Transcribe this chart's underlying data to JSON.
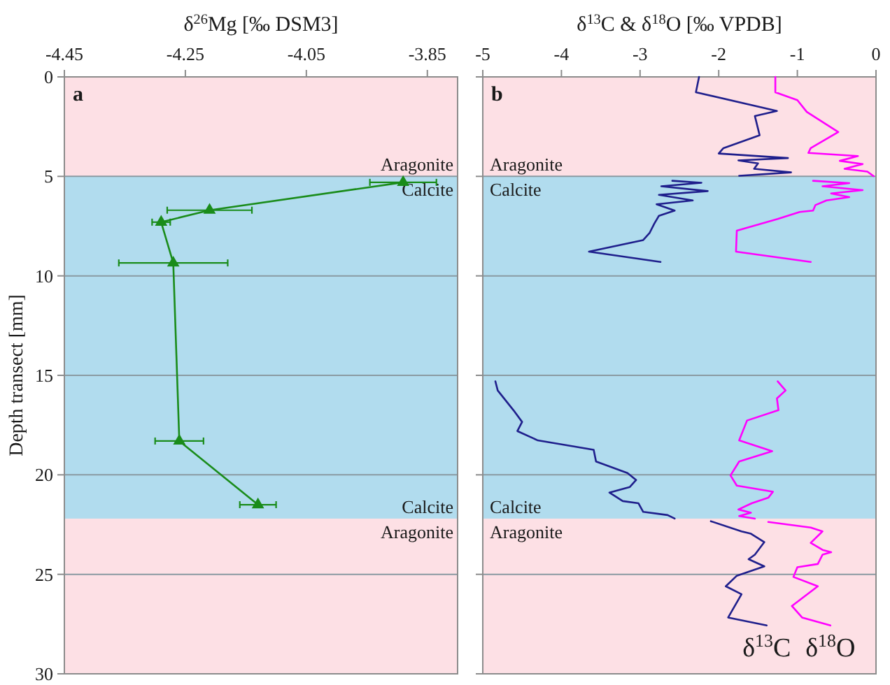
{
  "chart_data": [
    {
      "type": "line",
      "xlabel": "δ$^{26}$Mg [‰ DSM3]",
      "ylabel": "Depth transect [mm]",
      "x": [
        -3.89,
        -4.21,
        -4.29,
        -4.27,
        -4.26,
        -4.13
      ],
      "values": [
        5.3,
        6.7,
        7.3,
        9.35,
        18.3,
        21.5
      ],
      "xerrors": [
        0.055,
        0.07,
        0.015,
        0.09,
        0.04,
        0.03
      ],
      "color": "#1a8c1a",
      "marker": "triangle",
      "xlim": [
        -4.45,
        -3.8
      ],
      "xticks": [
        -4.45,
        -4.25,
        -4.05,
        -3.85
      ],
      "ylim": [
        30,
        0
      ],
      "yticks": [
        0,
        5,
        10,
        15,
        20,
        25,
        30
      ],
      "grid": "y",
      "bands": [
        {
          "axis": "y",
          "from": 0,
          "to": 5,
          "label": "Aragonite",
          "color": "#fde0e5"
        },
        {
          "axis": "y",
          "from": 5,
          "to": 22.2,
          "label": "Calcite",
          "color": "#b1dcee"
        },
        {
          "axis": "y",
          "from": 22.2,
          "to": 30,
          "label": "Aragonite",
          "color": "#fde0e5"
        }
      ],
      "annotations": [
        "a"
      ]
    },
    {
      "type": "line",
      "xlabel": "δ$^{13}$C & δ$^{18}$O [‰ VPDB]",
      "xlim": [
        -5,
        0
      ],
      "xticks": [
        -5,
        -4,
        -3,
        -2,
        -1,
        0
      ],
      "ylim": [
        30,
        0
      ],
      "yticks": [
        0,
        5,
        10,
        15,
        20,
        25,
        30
      ],
      "tick_labels": "x",
      "grid": "y",
      "series": [
        {
          "name": "δ$^{13}$C",
          "color": "#1f1f8c",
          "x": [
            -2.25,
            -2.29,
            -1.26,
            -1.54,
            -1.48,
            -1.94,
            -2.0,
            -1.12,
            -1.75,
            -1.5,
            -1.55,
            -1.08,
            -1.74,
            null,
            -2.59,
            -2.22,
            -2.73,
            -2.14,
            -2.76,
            -2.33,
            -2.79,
            -2.56,
            -2.76,
            -2.82,
            -2.88,
            -2.96,
            -3.65,
            -2.74,
            null,
            -4.84,
            -4.81,
            -4.61,
            -4.5,
            -4.56,
            -4.3,
            -3.59,
            -3.56,
            -3.16,
            -3.05,
            -3.13,
            -3.39,
            -3.22,
            -3.02,
            -2.96,
            -2.65,
            -2.56,
            null,
            -2.1,
            -1.71,
            -1.59,
            -1.42,
            -1.54,
            -1.62,
            -1.42,
            -1.77,
            -1.91,
            -1.71,
            -1.88,
            -1.39
          ],
          "values": [
            0,
            0.77,
            1.71,
            1.97,
            2.93,
            3.58,
            3.85,
            4.08,
            4.2,
            4.35,
            4.62,
            4.8,
            4.97,
            null,
            5.22,
            5.32,
            5.5,
            5.74,
            5.93,
            6.21,
            6.4,
            6.72,
            6.98,
            7.38,
            7.85,
            8.2,
            8.78,
            9.3,
            null,
            15.3,
            15.76,
            16.75,
            17.34,
            17.8,
            18.27,
            18.74,
            19.33,
            19.91,
            20.26,
            20.61,
            20.89,
            21.32,
            21.43,
            21.86,
            22.02,
            22.2,
            null,
            22.33,
            22.84,
            22.96,
            23.38,
            24.01,
            24.24,
            24.6,
            25.07,
            25.6,
            26.0,
            27.17,
            27.57
          ]
        },
        {
          "name": "δ$^{18}$O",
          "color": "#ff00ff",
          "x": [
            -1.28,
            -1.28,
            -1.0,
            -0.88,
            -0.48,
            -0.83,
            -0.86,
            -0.23,
            -0.46,
            -0.17,
            -0.4,
            -0.11,
            -0.03,
            null,
            -0.8,
            -0.34,
            -0.68,
            -0.17,
            -0.57,
            -0.34,
            -0.63,
            -0.77,
            -0.8,
            -0.97,
            -1.25,
            -1.77,
            -1.78,
            -0.83,
            null,
            -1.25,
            -1.15,
            -1.26,
            -1.24,
            -1.64,
            -1.74,
            -1.32,
            -1.74,
            -1.85,
            -1.77,
            -1.31,
            -1.37,
            -1.58,
            -1.75,
            -1.59,
            -1.74,
            -1.54,
            null,
            -1.37,
            -0.83,
            -0.68,
            -0.83,
            -0.68,
            -0.57,
            -0.68,
            -0.74,
            -1.0,
            -1.05,
            -0.74,
            -1.07,
            -0.94,
            -0.58
          ],
          "values": [
            0,
            0.77,
            1.17,
            1.76,
            2.77,
            3.58,
            3.82,
            3.98,
            4.22,
            4.38,
            4.62,
            4.76,
            4.99,
            null,
            5.22,
            5.34,
            5.5,
            5.69,
            5.86,
            6.04,
            6.21,
            6.44,
            6.72,
            6.79,
            7.14,
            7.73,
            8.78,
            9.3,
            null,
            15.3,
            15.76,
            16.16,
            16.75,
            17.27,
            18.27,
            18.81,
            19.33,
            20.03,
            20.54,
            20.85,
            21.15,
            21.43,
            21.74,
            21.9,
            22.07,
            22.2,
            null,
            22.37,
            22.65,
            22.84,
            23.42,
            23.77,
            23.89,
            24.01,
            24.48,
            24.64,
            25.13,
            25.6,
            26.59,
            27.17,
            27.57
          ]
        }
      ],
      "bands": [
        {
          "axis": "y",
          "from": 0,
          "to": 5,
          "label": "Aragonite",
          "color": "#fde0e5"
        },
        {
          "axis": "y",
          "from": 5,
          "to": 22.2,
          "label": "Calcite",
          "color": "#b1dcee"
        },
        {
          "axis": "y",
          "from": 22.2,
          "to": 30,
          "label": "Aragonite",
          "color": "#fde0e5"
        }
      ],
      "annotations": [
        "b"
      ]
    }
  ]
}
